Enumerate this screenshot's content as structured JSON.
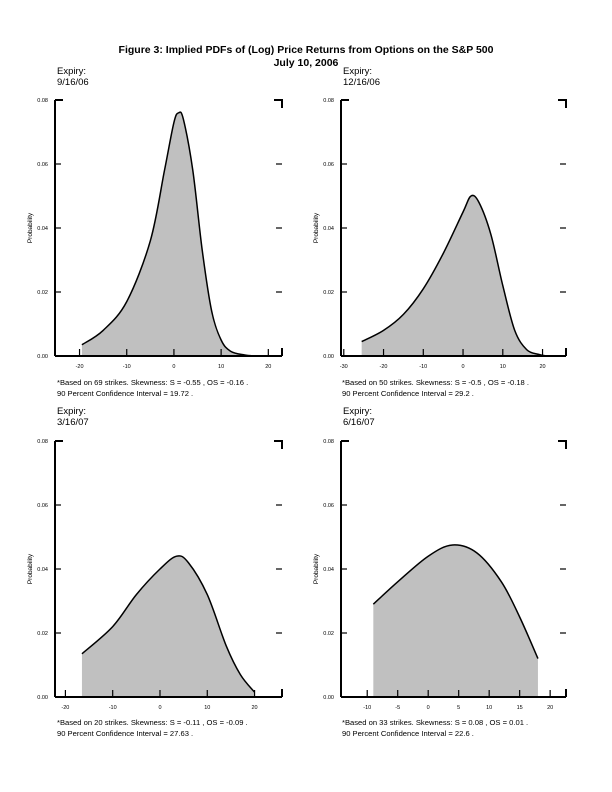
{
  "title": "Figure 3: Implied PDFs of (Log) Price Returns from Options on the S&P 500",
  "subtitle": "July 10, 2006",
  "chart_data": [
    {
      "type": "area",
      "expiry_label": "Expiry:",
      "expiry": "9/16/06",
      "ylabel": "Probability",
      "ylim": [
        0,
        0.08
      ],
      "xlim": [
        -25.2,
        22.9
      ],
      "yticks": [
        "0.00",
        "0.02",
        "0.04",
        "0.06",
        "0.08"
      ],
      "xticks": [
        -20,
        -10,
        0,
        10,
        20
      ],
      "x": [
        -19.5,
        -15,
        -10,
        -5,
        -2,
        0,
        1,
        2,
        4,
        6,
        8,
        10,
        12,
        15,
        17
      ],
      "y": [
        0.0035,
        0.008,
        0.017,
        0.036,
        0.058,
        0.073,
        0.076,
        0.074,
        0.058,
        0.033,
        0.014,
        0.005,
        0.0015,
        0.0003,
        0.0
      ],
      "note1": "*Based on 69 strikes.  Skewness: S = -0.55 , OS = -0.16 .",
      "note2": "90 Percent Confidence Interval =  19.72 ."
    },
    {
      "type": "area",
      "expiry_label": "Expiry:",
      "expiry": "12/16/06",
      "ylabel": "Probability",
      "ylim": [
        0,
        0.08
      ],
      "xlim": [
        -30.7,
        25.9
      ],
      "yticks": [
        "0.00",
        "0.02",
        "0.04",
        "0.06",
        "0.08"
      ],
      "xticks": [
        -30,
        -20,
        -10,
        0,
        10,
        20
      ],
      "x": [
        -25.5,
        -20,
        -15,
        -10,
        -5,
        0,
        2,
        4,
        7,
        10,
        13,
        16,
        19,
        21
      ],
      "y": [
        0.0045,
        0.008,
        0.013,
        0.021,
        0.032,
        0.045,
        0.05,
        0.048,
        0.038,
        0.022,
        0.008,
        0.002,
        0.0005,
        0.0
      ],
      "note1": "*Based on 50 strikes.  Skewness: S = -0.5 , OS = -0.18 .",
      "note2": "90 Percent Confidence Interval =  29.2 ."
    },
    {
      "type": "area",
      "expiry_label": "Expiry:",
      "expiry": "3/16/07",
      "ylabel": "Probability",
      "ylim": [
        0,
        0.08
      ],
      "xlim": [
        -22.2,
        25.8
      ],
      "yticks": [
        "0.00",
        "0.02",
        "0.04",
        "0.06",
        "0.08"
      ],
      "xticks": [
        -20,
        -10,
        0,
        10,
        20
      ],
      "x": [
        -16.5,
        -10,
        -5,
        0,
        3.5,
        6,
        10,
        14,
        17,
        20
      ],
      "y": [
        0.0135,
        0.022,
        0.032,
        0.04,
        0.044,
        0.042,
        0.032,
        0.016,
        0.007,
        0.0015
      ],
      "note1": "*Based on 20 strikes.  Skewness: S = -0.11 , OS = -0.09 .",
      "note2": "90 Percent Confidence Interval =  27.63 ."
    },
    {
      "type": "area",
      "expiry_label": "Expiry:",
      "expiry": "6/16/07",
      "ylabel": "Probability",
      "ylim": [
        0,
        0.08
      ],
      "xlim": [
        -14.3,
        22.6
      ],
      "yticks": [
        "0.00",
        "0.02",
        "0.04",
        "0.06",
        "0.08"
      ],
      "xticks": [
        -10,
        -5,
        0,
        5,
        10,
        15,
        20
      ],
      "x": [
        -9,
        -5,
        0,
        4,
        8,
        12,
        15,
        18
      ],
      "y": [
        0.029,
        0.036,
        0.044,
        0.0475,
        0.045,
        0.036,
        0.025,
        0.012
      ],
      "note1": "*Based on 33 strikes.  Skewness: S = 0.08 , OS = 0.01 .",
      "note2": "90 Percent Confidence Interval =  22.6 ."
    }
  ],
  "colors": {
    "fill": "#c0c0c0",
    "line": "#000000"
  }
}
